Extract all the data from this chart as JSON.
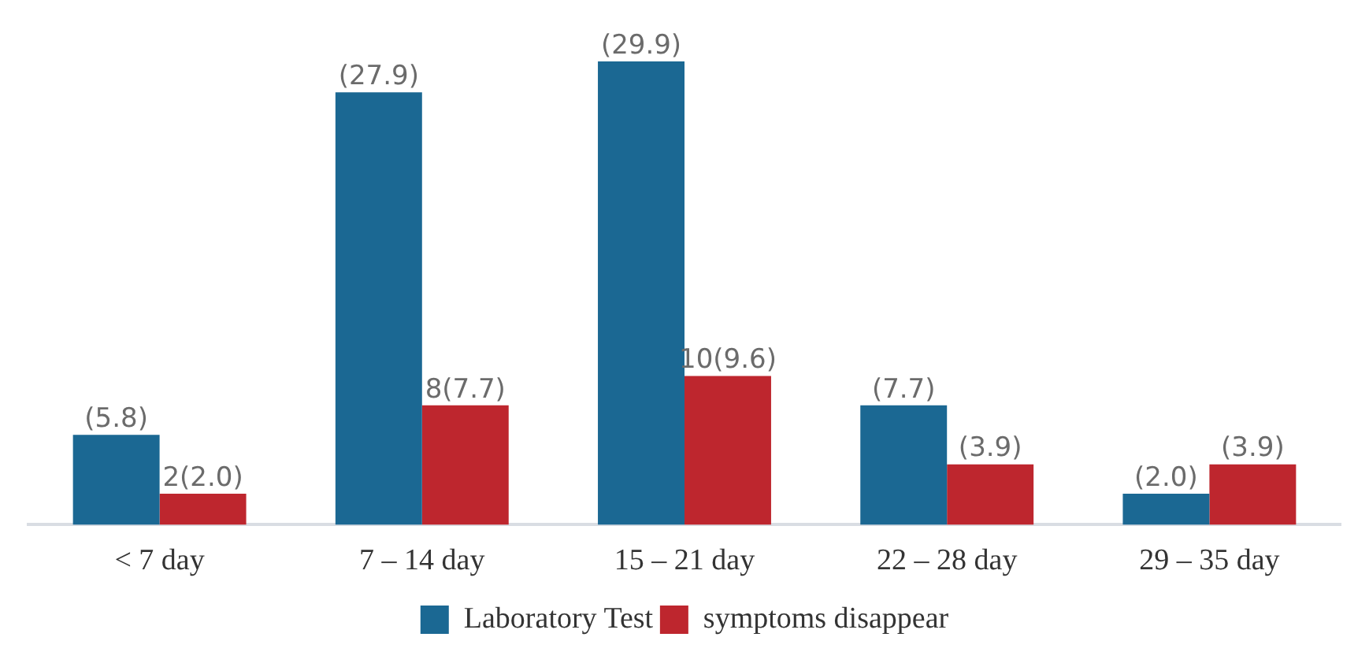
{
  "chart_data": {
    "type": "bar",
    "categories": [
      "< 7 day",
      "7 – 14 day",
      "15 – 21 day",
      "22 – 28 day",
      "29 – 35 day"
    ],
    "series": [
      {
        "name": "Laboratory Test",
        "color": "#1b6893",
        "values": [
          5.8,
          27.9,
          29.9,
          7.7,
          2.0
        ],
        "value_labels": [
          "(5.8)",
          "(27.9)",
          "(29.9)",
          "(7.7)",
          "(2.0)"
        ]
      },
      {
        "name": "symptoms disappear",
        "color": "#be262e",
        "values": [
          2.0,
          7.7,
          9.6,
          3.9,
          3.9
        ],
        "value_labels": [
          "2(2.0)",
          "8(7.7)",
          "10(9.6)",
          "(3.9)",
          "(3.9)"
        ]
      }
    ],
    "grid": false,
    "legend": "bottom"
  }
}
